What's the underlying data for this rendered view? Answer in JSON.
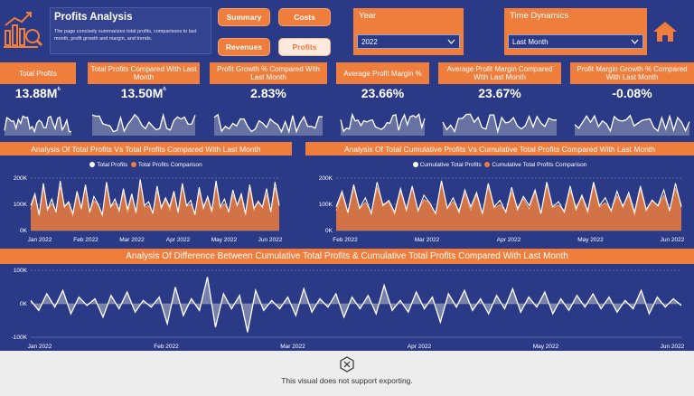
{
  "header": {
    "title": "Profits Analysis",
    "description": "The page concisely summarizes total profits, comparisons to last month, profit growth and margin, and trends.",
    "logo": "profit-chart-logo-icon"
  },
  "nav": {
    "summary": "Summary",
    "costs": "Costs",
    "revenues": "Revenues",
    "profits": "Profits",
    "active": "Profits"
  },
  "slicers": {
    "year": {
      "label": "Year",
      "value": "2022"
    },
    "time_dynamics": {
      "label": "Time Dynamics",
      "value": "Last Month"
    }
  },
  "home": {
    "icon": "home-icon"
  },
  "kpis": [
    {
      "title": "Total Profits",
      "value": "13.88M",
      "unit": "₺"
    },
    {
      "title": "Total Profits Compared With Last Month",
      "value": "13.50M",
      "unit": "₺"
    },
    {
      "title": "Profit Growth % Compared With Last Month",
      "value": "2.83%",
      "unit": ""
    },
    {
      "title": "Average Profit Margin %",
      "value": "23.66%",
      "unit": ""
    },
    {
      "title": "Average Profit Margin Compared With Last Month",
      "value": "23.67%",
      "unit": ""
    },
    {
      "title": "Profit Margin Growth % Compared With Last Month",
      "value": "-0.08%",
      "unit": ""
    }
  ],
  "chart1": {
    "title": "Analysis Of Total Profits Vs Total Profits Compared With Last Month",
    "legend": [
      "Total Profits",
      "Total Profits Comparison"
    ]
  },
  "chart2": {
    "title": "Analysis Of Total Cumulative Profits Vs Cumulative Total Profits Compared With Last Month",
    "legend": [
      "Cumulative Total Profits",
      "Cumulative Total Profits Comparison"
    ]
  },
  "chart3": {
    "title": "Analysis Of Difference Between Cumulative Total Profits & Cumulative Total Profits Compared With Last Month"
  },
  "footer": {
    "message": "This visual does not support exporting.",
    "icon": "close-circle-icon"
  },
  "colors": {
    "primary": "#2b3a87",
    "accent": "#ef7d3c",
    "line": "#ffffff",
    "area": "#9aa0b8"
  },
  "chart_data": [
    {
      "type": "area",
      "title": "Analysis Of Total Profits Vs Total Profits Compared With Last Month",
      "series": [
        {
          "name": "Total Profits"
        },
        {
          "name": "Total Profits Comparison"
        }
      ],
      "x_ticks": [
        "Jan 2022",
        "Feb 2022",
        "Mar 2022",
        "Apr 2022",
        "May 2022",
        "Jun 2022"
      ],
      "y_ticks": [
        "200K",
        "100K",
        "0K"
      ],
      "ylim": [
        0,
        200000
      ],
      "samples": [
        95,
        140,
        60,
        180,
        80,
        120,
        70,
        190,
        90,
        110,
        65,
        150,
        85,
        175,
        70,
        130,
        100,
        60,
        185,
        90,
        120,
        75,
        160,
        80,
        140,
        70,
        195,
        95,
        110,
        65,
        170,
        85,
        125,
        90,
        150,
        70,
        180,
        95,
        115,
        60,
        165,
        85,
        130,
        75,
        190,
        90,
        120,
        70,
        155,
        95,
        140,
        65,
        175,
        85,
        110,
        90,
        160,
        70,
        185,
        95
      ]
    },
    {
      "type": "area",
      "title": "Analysis Of Total Cumulative Profits Vs Cumulative Total Profits Compared With Last Month",
      "series": [
        {
          "name": "Cumulative Total Profits"
        },
        {
          "name": "Cumulative Total Profits Comparison"
        }
      ],
      "x_ticks": [
        "Feb 2022",
        "Mar 2022",
        "Apr 2022",
        "May 2022",
        "Jun 2022"
      ],
      "y_ticks": [
        "200K",
        "100K",
        "0K"
      ],
      "ylim": [
        0,
        200000
      ],
      "samples": [
        90,
        150,
        70,
        175,
        85,
        125,
        65,
        185,
        95,
        115,
        70,
        160,
        80,
        170,
        75,
        135,
        105,
        65,
        190,
        85,
        125,
        70,
        155,
        90,
        145,
        65,
        180,
        90,
        115,
        70,
        165,
        80,
        130,
        95,
        155,
        65,
        185,
        90,
        110,
        70,
        170,
        80,
        135,
        75,
        185,
        95,
        125,
        75,
        150,
        90,
        145,
        70,
        170,
        80,
        115,
        95,
        155,
        75,
        180,
        90
      ]
    },
    {
      "type": "area",
      "title": "Analysis Of Difference Between Cumulative Total Profits & Cumulative Total Profits Compared With Last Month",
      "x_ticks": [
        "Jan 2022",
        "Feb 2022",
        "Mar 2022",
        "Apr 2022",
        "May 2022",
        "Jun 2022"
      ],
      "y_ticks": [
        "100K",
        "0K",
        "-100K"
      ],
      "ylim": [
        -100000,
        100000
      ],
      "samples": [
        10,
        -20,
        30,
        -10,
        40,
        -30,
        20,
        -5,
        15,
        -40,
        25,
        -15,
        35,
        -25,
        10,
        -10,
        20,
        -60,
        50,
        -35,
        15,
        -20,
        80,
        -70,
        30,
        -15,
        25,
        -85,
        40,
        -20,
        10,
        -15,
        20,
        -35,
        45,
        -25,
        15,
        -10,
        30,
        -40,
        20,
        -15,
        25,
        -30,
        55,
        -20,
        10,
        -25,
        35,
        -15,
        20,
        -55,
        30,
        -10,
        40,
        -20,
        15,
        -30,
        25,
        -15,
        45,
        -25,
        20,
        -10,
        35,
        -30,
        15,
        -20,
        25,
        -10,
        30,
        -15,
        20,
        -25,
        10,
        -15,
        40,
        -30,
        20,
        -10,
        15,
        -5
      ]
    }
  ]
}
